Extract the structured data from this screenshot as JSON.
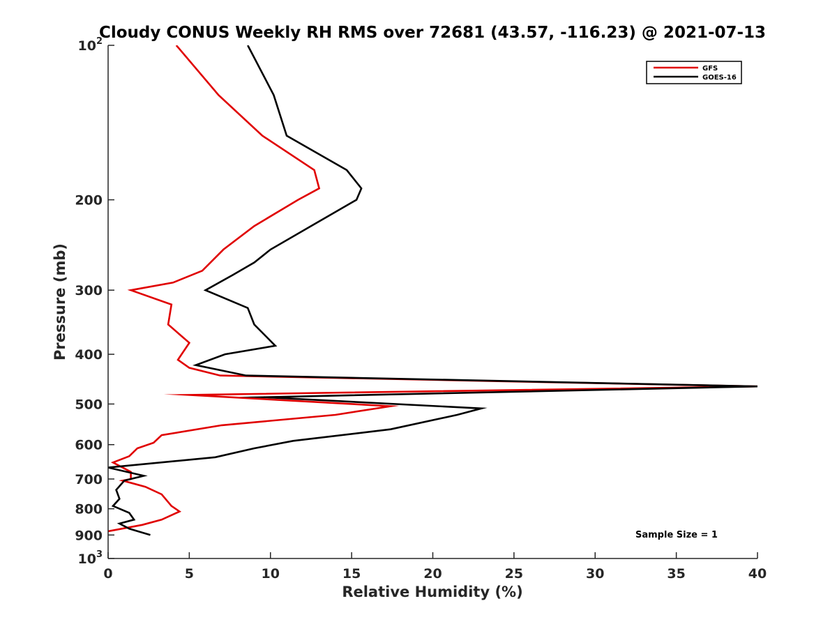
{
  "chart_data": {
    "type": "line",
    "title": "Cloudy CONUS Weekly RH RMS over 72681 (43.57, -116.23) @ 2021-07-13",
    "xlabel": "Relative Humidity (%)",
    "ylabel": "Pressure (mb)",
    "xlim": [
      0,
      40
    ],
    "ylim": [
      1000,
      100
    ],
    "y_scale": "log",
    "y_reversed": true,
    "grid": false,
    "legend_placement": "top-right",
    "xticks": [
      0,
      5,
      10,
      15,
      20,
      25,
      30,
      35,
      40
    ],
    "xtick_labels": [
      "0",
      "5",
      "10",
      "15",
      "20",
      "25",
      "30",
      "35",
      "40"
    ],
    "yticks": [
      100,
      200,
      300,
      400,
      500,
      600,
      700,
      800,
      900,
      1000
    ],
    "ytick_labels": [
      {
        "base": "10",
        "exp": "2"
      },
      {
        "base": "200",
        "exp": ""
      },
      {
        "base": "300",
        "exp": ""
      },
      {
        "base": "400",
        "exp": ""
      },
      {
        "base": "500",
        "exp": ""
      },
      {
        "base": "600",
        "exp": ""
      },
      {
        "base": "700",
        "exp": ""
      },
      {
        "base": "800",
        "exp": ""
      },
      {
        "base": "900",
        "exp": ""
      },
      {
        "base": "10",
        "exp": "3"
      }
    ],
    "annotation": "Sample Size = 1",
    "series": [
      {
        "name": "GFS",
        "color": "#e00000",
        "points": [
          [
            4.2,
            100
          ],
          [
            6.8,
            125
          ],
          [
            9.5,
            150
          ],
          [
            12.7,
            175
          ],
          [
            13.0,
            190
          ],
          [
            11.7,
            200
          ],
          [
            9.0,
            225
          ],
          [
            7.1,
            250
          ],
          [
            5.8,
            275
          ],
          [
            4.0,
            290
          ],
          [
            1.4,
            300
          ],
          [
            3.9,
            320
          ],
          [
            3.7,
            350
          ],
          [
            5.0,
            380
          ],
          [
            4.3,
            410
          ],
          [
            5.0,
            425
          ],
          [
            6.9,
            440
          ],
          [
            40.0,
            462
          ],
          [
            5.0,
            480
          ],
          [
            17.4,
            505
          ],
          [
            14.0,
            525
          ],
          [
            7.0,
            550
          ],
          [
            3.3,
            575
          ],
          [
            2.8,
            595
          ],
          [
            1.8,
            610
          ],
          [
            1.3,
            632
          ],
          [
            0.3,
            650
          ],
          [
            1.4,
            678
          ],
          [
            1.4,
            700
          ],
          [
            0.9,
            705
          ],
          [
            2.3,
            725
          ],
          [
            3.3,
            750
          ],
          [
            3.9,
            790
          ],
          [
            4.4,
            810
          ],
          [
            3.3,
            840
          ],
          [
            2.1,
            860
          ],
          [
            0.0,
            885
          ]
        ]
      },
      {
        "name": "GOES-16",
        "color": "#000000",
        "points": [
          [
            8.6,
            100
          ],
          [
            10.2,
            125
          ],
          [
            11.0,
            150
          ],
          [
            14.7,
            175
          ],
          [
            15.6,
            190
          ],
          [
            15.3,
            200
          ],
          [
            12.5,
            225
          ],
          [
            10.0,
            250
          ],
          [
            9.0,
            265
          ],
          [
            7.7,
            280
          ],
          [
            6.0,
            300
          ],
          [
            8.6,
            325
          ],
          [
            9.0,
            350
          ],
          [
            10.3,
            385
          ],
          [
            7.2,
            400
          ],
          [
            5.4,
            420
          ],
          [
            8.5,
            440
          ],
          [
            40.0,
            462
          ],
          [
            9.6,
            485
          ],
          [
            23.0,
            510
          ],
          [
            21.5,
            525
          ],
          [
            17.4,
            560
          ],
          [
            11.4,
            590
          ],
          [
            9.0,
            610
          ],
          [
            6.6,
            635
          ],
          [
            0.0,
            665
          ],
          [
            2.2,
            690
          ],
          [
            1.0,
            705
          ],
          [
            0.5,
            735
          ],
          [
            0.7,
            765
          ],
          [
            0.3,
            790
          ],
          [
            1.3,
            815
          ],
          [
            1.6,
            840
          ],
          [
            0.7,
            855
          ],
          [
            1.3,
            875
          ],
          [
            2.6,
            900
          ]
        ]
      }
    ]
  }
}
